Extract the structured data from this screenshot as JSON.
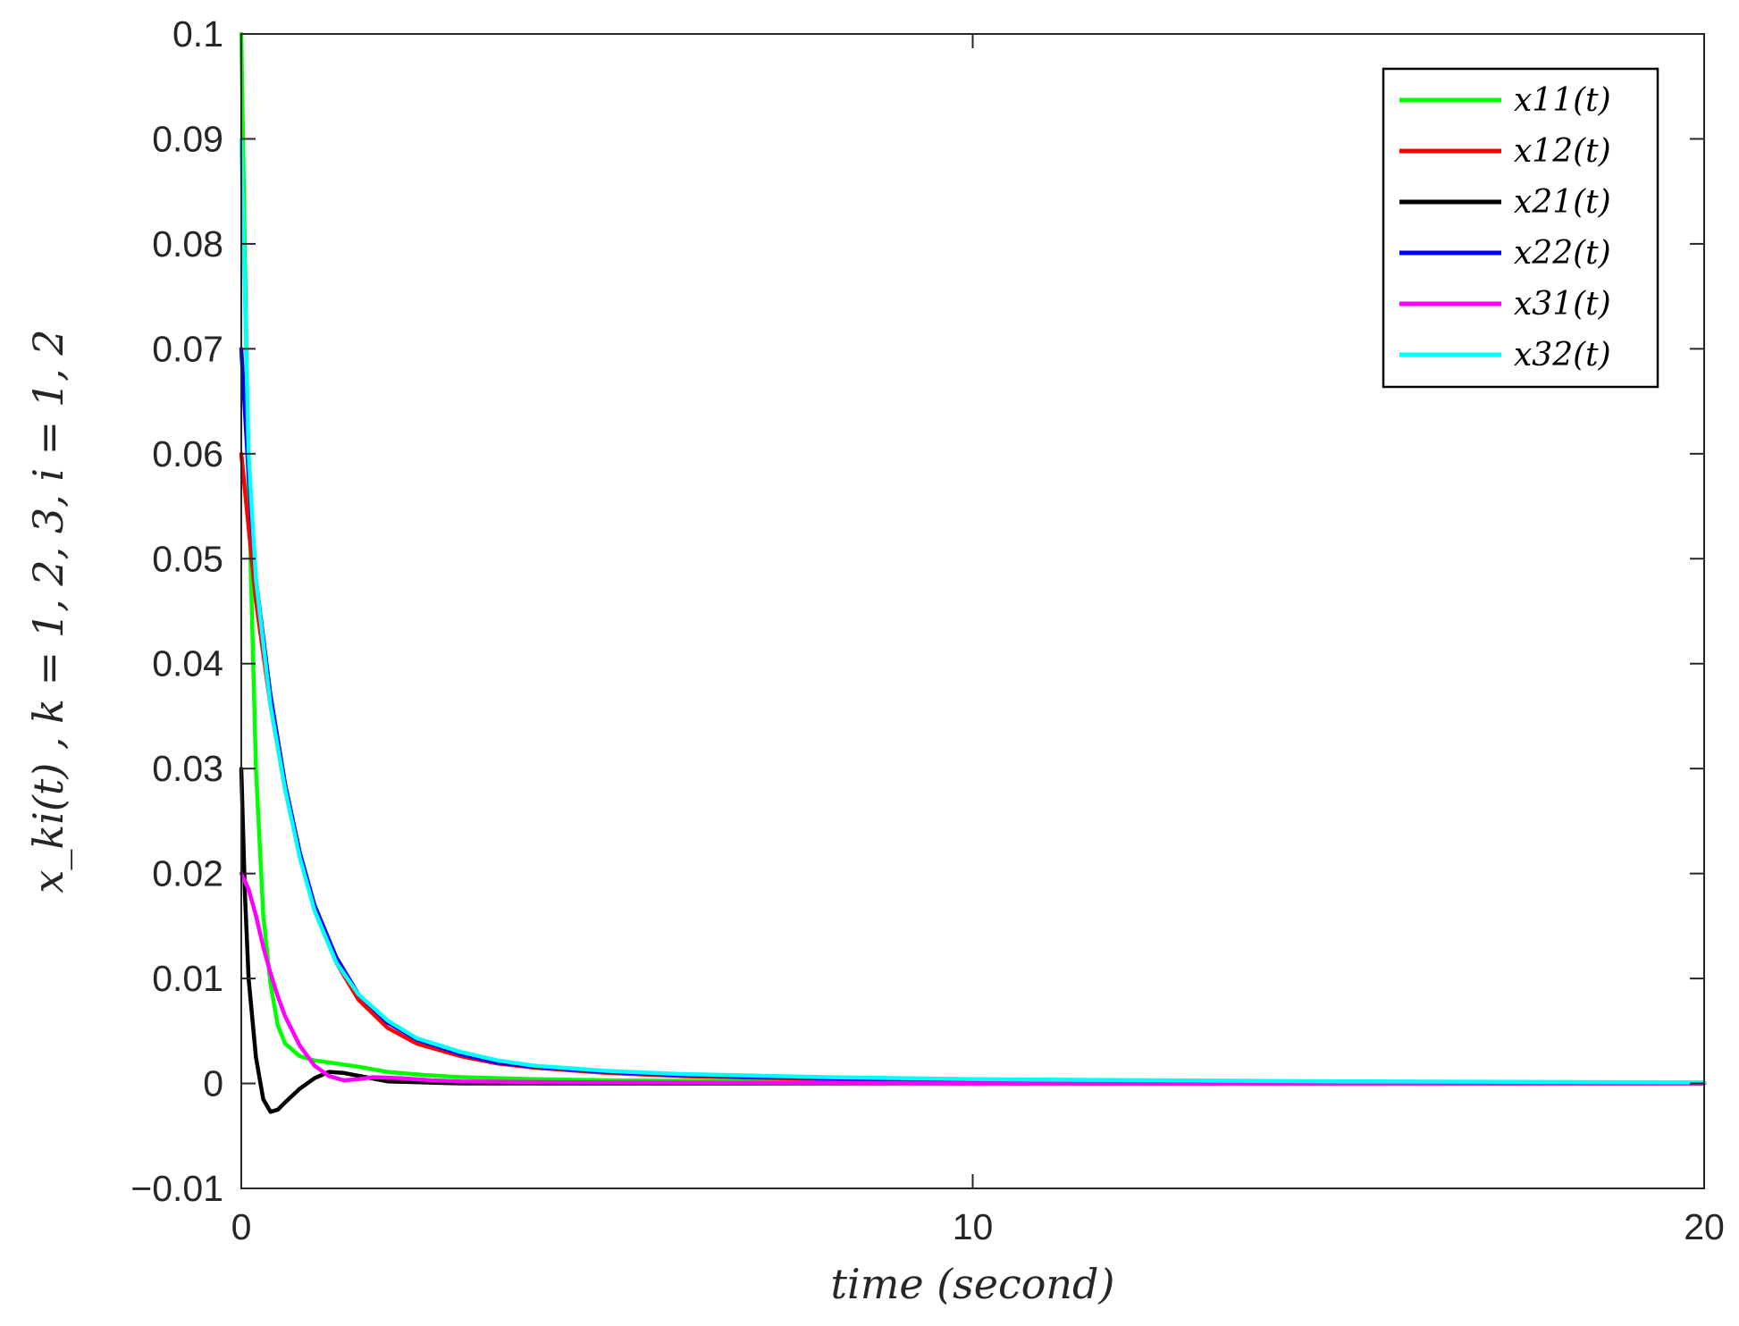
{
  "chart_data": {
    "type": "line",
    "xlabel": "time (second)",
    "ylabel": "x_ki(t) , k = 1, 2, 3, i = 1, 2",
    "xlim": [
      0,
      20
    ],
    "ylim": [
      -0.01,
      0.1
    ],
    "x_ticks": [
      0,
      10,
      20
    ],
    "x_tick_labels": [
      "0",
      "10",
      "20"
    ],
    "y_ticks": [
      -0.01,
      0,
      0.01,
      0.02,
      0.03,
      0.04,
      0.05,
      0.06,
      0.07,
      0.08,
      0.09,
      0.1
    ],
    "y_tick_labels": [
      "−0.01",
      "0",
      "0.01",
      "0.02",
      "0.03",
      "0.04",
      "0.05",
      "0.06",
      "0.07",
      "0.08",
      "0.09",
      "0.1"
    ],
    "grid": false,
    "legend_position": "top-right",
    "series": [
      {
        "name": "x11(t)",
        "color": "#00ff00",
        "x": [
          0,
          0.1,
          0.2,
          0.3,
          0.4,
          0.5,
          0.6,
          0.8,
          1.0,
          1.3,
          1.6,
          2.0,
          2.5,
          3.0,
          4.0,
          5.0,
          7.0,
          10.0,
          15.0,
          20.0
        ],
        "y": [
          0.1,
          0.057,
          0.03,
          0.016,
          0.0095,
          0.0055,
          0.0038,
          0.0026,
          0.0022,
          0.0019,
          0.0016,
          0.0011,
          0.0008,
          0.0006,
          0.0004,
          0.0003,
          0.0002,
          0.0001,
          5e-05,
          0.0
        ]
      },
      {
        "name": "x12(t)",
        "color": "#ff0000",
        "x": [
          0,
          0.1,
          0.2,
          0.4,
          0.6,
          0.8,
          1.0,
          1.3,
          1.6,
          2.0,
          2.4,
          3.0,
          3.5,
          4.0,
          5.0,
          6.0,
          8.0,
          10.0,
          15.0,
          20.0
        ],
        "y": [
          0.06,
          0.053,
          0.046,
          0.036,
          0.028,
          0.022,
          0.0165,
          0.0115,
          0.008,
          0.0053,
          0.0038,
          0.0026,
          0.0019,
          0.0015,
          0.001,
          0.0007,
          0.0004,
          0.0003,
          0.0001,
          5e-05
        ]
      },
      {
        "name": "x21(t)",
        "color": "#000000",
        "x": [
          0,
          0.05,
          0.1,
          0.2,
          0.3,
          0.4,
          0.5,
          0.6,
          0.8,
          1.0,
          1.2,
          1.4,
          1.7,
          2.0,
          2.5,
          3.0,
          5.0,
          10.0,
          20.0
        ],
        "y": [
          0.03,
          0.018,
          0.01,
          0.0025,
          -0.0015,
          -0.0027,
          -0.0025,
          -0.0018,
          -0.0005,
          0.0005,
          0.0011,
          0.001,
          0.0006,
          0.0002,
          0.0001,
          0.0,
          0.0,
          0.0,
          0.0
        ]
      },
      {
        "name": "x22(t)",
        "color": "#0000ff",
        "x": [
          0,
          0.1,
          0.2,
          0.4,
          0.6,
          0.8,
          1.0,
          1.3,
          1.6,
          2.0,
          2.4,
          3.0,
          3.5,
          4.0,
          5.0,
          6.0,
          8.0,
          10.0,
          15.0,
          20.0
        ],
        "y": [
          0.07,
          0.058,
          0.048,
          0.037,
          0.0285,
          0.022,
          0.017,
          0.012,
          0.0085,
          0.0058,
          0.0042,
          0.0028,
          0.002,
          0.0016,
          0.0011,
          0.0008,
          0.0005,
          0.0003,
          0.0001,
          5e-05
        ]
      },
      {
        "name": "x31(t)",
        "color": "#ff00ff",
        "x": [
          0,
          0.1,
          0.2,
          0.3,
          0.4,
          0.5,
          0.6,
          0.8,
          1.0,
          1.2,
          1.4,
          1.6,
          1.8,
          2.2,
          2.6,
          3.0,
          5.0,
          10.0,
          20.0
        ],
        "y": [
          0.02,
          0.0185,
          0.016,
          0.013,
          0.0105,
          0.0083,
          0.0064,
          0.0036,
          0.0017,
          0.0007,
          0.0003,
          0.0004,
          0.0006,
          0.0005,
          0.0003,
          0.0002,
          0.0001,
          0.0,
          0.0
        ]
      },
      {
        "name": "x32(t)",
        "color": "#00ffff",
        "x": [
          0,
          0.05,
          0.1,
          0.2,
          0.4,
          0.6,
          0.8,
          1.0,
          1.3,
          1.6,
          2.0,
          2.4,
          3.0,
          3.5,
          4.0,
          5.0,
          6.0,
          8.0,
          10.0,
          15.0,
          20.0
        ],
        "y": [
          0.09,
          0.075,
          0.06,
          0.048,
          0.036,
          0.028,
          0.0215,
          0.0165,
          0.0115,
          0.0085,
          0.006,
          0.0043,
          0.003,
          0.0022,
          0.0017,
          0.0012,
          0.0009,
          0.0006,
          0.0004,
          0.0002,
          0.0001
        ]
      }
    ]
  }
}
